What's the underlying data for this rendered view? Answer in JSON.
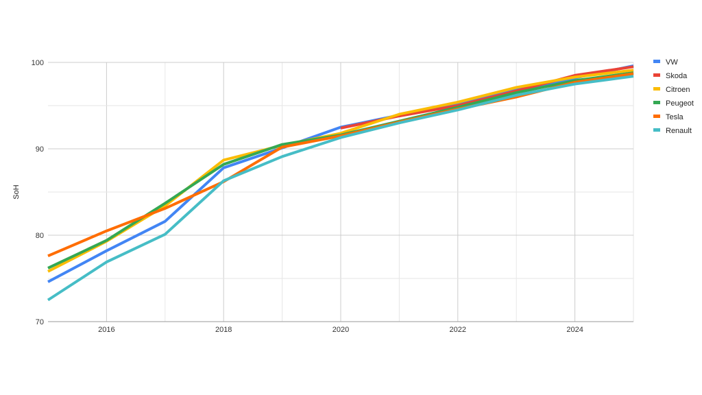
{
  "chart_data": {
    "type": "line",
    "title": "",
    "xlabel": "",
    "ylabel": "SoH",
    "xlim": [
      2015,
      2025
    ],
    "ylim": [
      70,
      100
    ],
    "x_ticks": [
      2016,
      2018,
      2020,
      2022,
      2024
    ],
    "y_ticks": [
      70,
      80,
      90,
      100
    ],
    "grid": true,
    "legend_position": "right",
    "series": [
      {
        "name": "VW",
        "color": "#4285F4",
        "points": [
          [
            2015,
            74.6
          ],
          [
            2016,
            78.2
          ],
          [
            2017,
            81.6
          ],
          [
            2018,
            87.8
          ],
          [
            2019,
            90.1
          ],
          [
            2020,
            92.5
          ],
          [
            2021,
            93.9
          ],
          [
            2022,
            95.1
          ],
          [
            2023,
            96.8
          ],
          [
            2024,
            98.2
          ],
          [
            2025,
            99.6
          ]
        ]
      },
      {
        "name": "Skoda",
        "color": "#EA4335",
        "points": [
          [
            2020,
            92.4
          ],
          [
            2021,
            93.8
          ],
          [
            2022,
            95.0
          ],
          [
            2023,
            96.7
          ],
          [
            2024,
            98.5
          ],
          [
            2025,
            99.5
          ]
        ]
      },
      {
        "name": "Citroen",
        "color": "#FBBC04",
        "points": [
          [
            2015,
            75.8
          ],
          [
            2016,
            79.3
          ],
          [
            2017,
            83.4
          ],
          [
            2018,
            88.7
          ],
          [
            2019,
            90.4
          ],
          [
            2020,
            91.8
          ],
          [
            2021,
            94.0
          ],
          [
            2022,
            95.4
          ],
          [
            2023,
            97.1
          ],
          [
            2024,
            98.3
          ],
          [
            2025,
            99.1
          ]
        ]
      },
      {
        "name": "Peugeot",
        "color": "#34A853",
        "points": [
          [
            2015,
            76.2
          ],
          [
            2016,
            79.4
          ],
          [
            2017,
            83.7
          ],
          [
            2018,
            88.2
          ],
          [
            2019,
            90.5
          ],
          [
            2020,
            91.6
          ],
          [
            2021,
            93.2
          ],
          [
            2022,
            94.8
          ],
          [
            2023,
            96.5
          ],
          [
            2024,
            97.9
          ],
          [
            2025,
            98.8
          ]
        ]
      },
      {
        "name": "Tesla",
        "color": "#FF6D01",
        "points": [
          [
            2015,
            77.6
          ],
          [
            2016,
            80.5
          ],
          [
            2017,
            83.1
          ],
          [
            2018,
            86.2
          ],
          [
            2019,
            90.2
          ],
          [
            2020,
            91.5
          ],
          [
            2021,
            93.1
          ],
          [
            2022,
            94.6
          ],
          [
            2023,
            96.0
          ],
          [
            2024,
            97.7
          ],
          [
            2025,
            98.7
          ]
        ]
      },
      {
        "name": "Renault",
        "color": "#46BDC6",
        "points": [
          [
            2015,
            72.5
          ],
          [
            2016,
            76.9
          ],
          [
            2017,
            80.1
          ],
          [
            2018,
            86.3
          ],
          [
            2019,
            89.1
          ],
          [
            2020,
            91.3
          ],
          [
            2021,
            93.0
          ],
          [
            2022,
            94.5
          ],
          [
            2023,
            96.2
          ],
          [
            2024,
            97.5
          ],
          [
            2025,
            98.4
          ]
        ]
      }
    ]
  }
}
